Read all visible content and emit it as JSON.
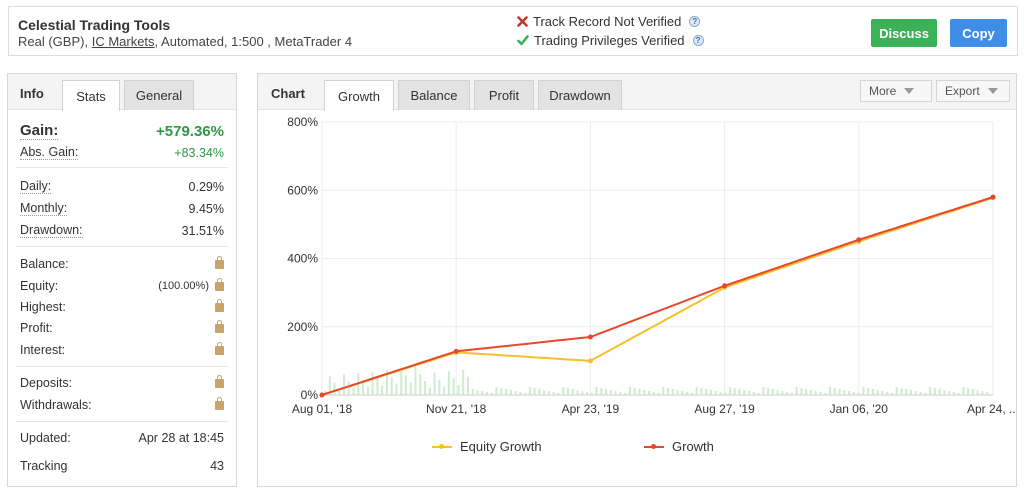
{
  "header": {
    "title": "Celestial Trading Tools",
    "account_type": "Real (GBP),",
    "broker": "IC Markets",
    "details": ", Automated, 1:500 , MetaTrader 4",
    "verification": [
      {
        "label": "Track Record Not Verified",
        "status": "not-verified",
        "color": "#c0392b"
      },
      {
        "label": "Trading Privileges Verified",
        "status": "verified",
        "color": "#3db158"
      }
    ],
    "discuss_label": "Discuss",
    "copy_label": "Copy"
  },
  "info_panel": {
    "title": "Info",
    "tabs": [
      "Stats",
      "General"
    ],
    "active_tab": "Stats",
    "gain": {
      "label": "Gain:",
      "value": "+579.36%"
    },
    "abs_gain": {
      "label": "Abs. Gain:",
      "value": "+83.34%"
    },
    "stats": [
      {
        "label": "Daily:",
        "value": "0.29%"
      },
      {
        "label": "Monthly:",
        "value": "9.45%"
      },
      {
        "label": "Drawdown:",
        "value": "31.51%"
      }
    ],
    "locked": [
      {
        "label": "Balance:",
        "value": ""
      },
      {
        "label": "Equity:",
        "value": "(100.00%)"
      },
      {
        "label": "Highest:",
        "value": ""
      },
      {
        "label": "Profit:",
        "value": ""
      },
      {
        "label": "Interest:",
        "value": ""
      }
    ],
    "funds": [
      {
        "label": "Deposits:"
      },
      {
        "label": "Withdrawals:"
      }
    ],
    "updated": {
      "label": "Updated:",
      "value": "Apr 28 at 18:45"
    },
    "tracking": {
      "label": "Tracking",
      "value": "43"
    }
  },
  "chart_panel": {
    "title": "Chart",
    "tabs": [
      "Growth",
      "Balance",
      "Profit",
      "Drawdown"
    ],
    "active_tab": "Growth",
    "more_label": "More",
    "export_label": "Export"
  },
  "chart_data": {
    "type": "line",
    "xlabel": "",
    "ylabel": "",
    "ylim": [
      0,
      800
    ],
    "y_ticks": [
      "800%",
      "600%",
      "400%",
      "200%",
      "0%"
    ],
    "x_ticks": [
      "Aug 01, '18",
      "Nov 21, '18",
      "Apr 23, '19",
      "Aug 27, '19",
      "Jan 06, '20",
      "Apr 24, ..."
    ],
    "x": [
      "Aug 01, '18",
      "Nov 21, '18",
      "Apr 23, '19",
      "Aug 27, '19",
      "Jan 06, '20",
      "Apr 24, ..."
    ],
    "series": [
      {
        "name": "Growth",
        "color": "#e8482c",
        "values": [
          0,
          128,
          170,
          320,
          455,
          580
        ]
      },
      {
        "name": "Equity Growth",
        "color": "#f5c02a",
        "values": [
          0,
          125,
          100,
          315,
          450,
          578
        ]
      }
    ],
    "grid": true,
    "legend_position": "bottom"
  }
}
